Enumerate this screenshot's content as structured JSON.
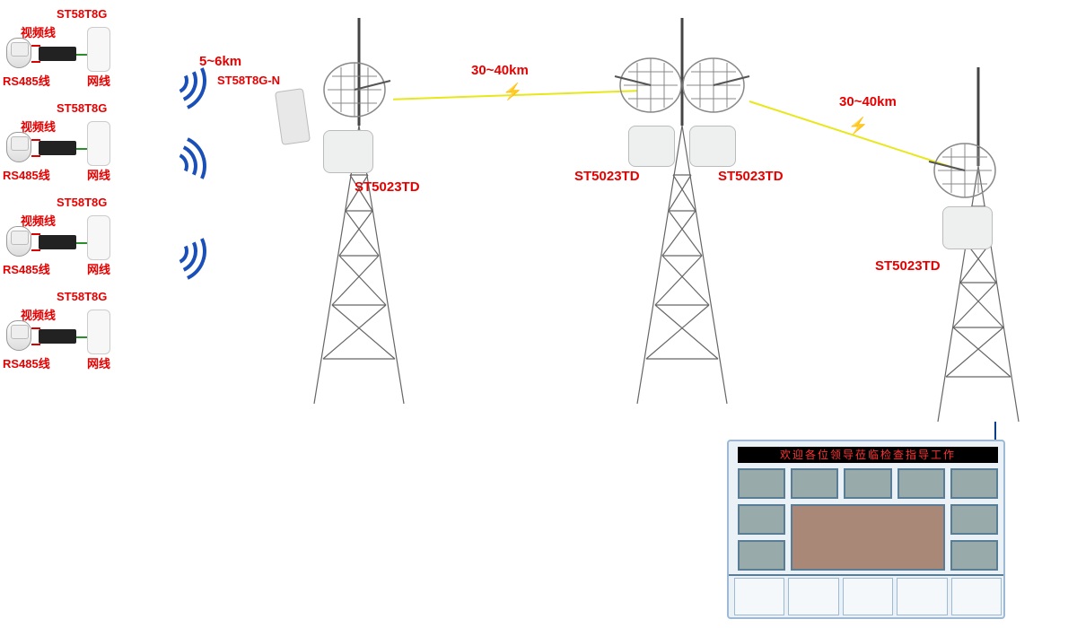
{
  "colors": {
    "label_red": "#e60000",
    "wifi_blue": "#1a4fb8",
    "link_yellow": "#e7e71a",
    "bg": "#ffffff"
  },
  "camera_units": {
    "count": 4,
    "model_label": "ST58T8G",
    "video_label": "视频线",
    "rs485_label": "RS485线",
    "net_label": "网线",
    "positions_y": [
      10,
      115,
      220,
      325
    ]
  },
  "short_link": {
    "distance": "5~6km",
    "receiver_model": "ST58T8G-N"
  },
  "towers": {
    "t1": {
      "device": "ST5023TD",
      "has_panel": true
    },
    "t2": {
      "device_left": "ST5023TD",
      "device_right": "ST5023TD"
    },
    "t3": {
      "device": "ST5023TD"
    }
  },
  "long_links": {
    "link1": "30~40km",
    "link2": "30~40km"
  },
  "monitor_wall": {
    "banner": "欢迎各位领导莅临检查指导工作",
    "rows": 3,
    "cols": 5
  },
  "typography": {
    "label_fontsize": 15,
    "small_fontsize": 13,
    "weight": "bold"
  }
}
